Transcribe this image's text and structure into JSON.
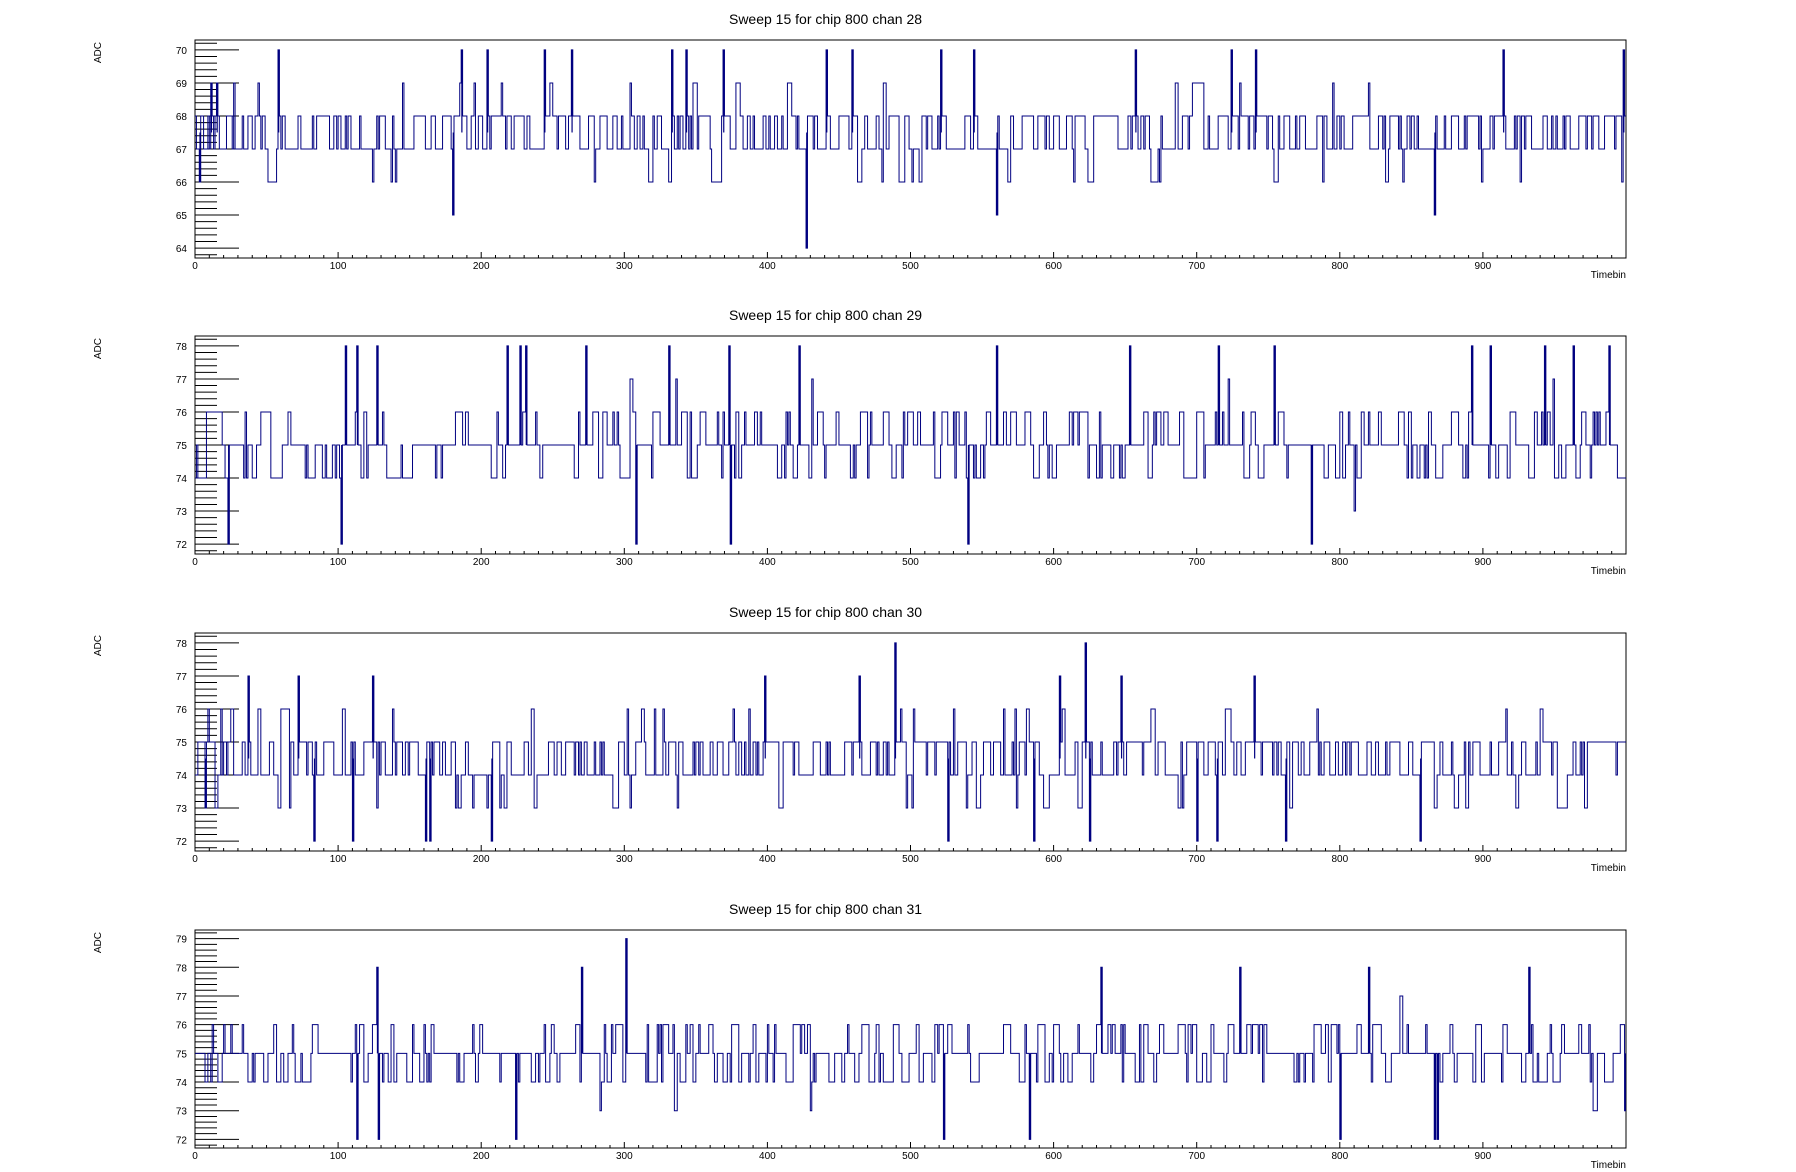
{
  "colors": {
    "trace": "#000080",
    "frame": "#000000",
    "background": "#ffffff"
  },
  "chart_data": [
    {
      "type": "line",
      "title": "Sweep 15 for chip 800 chan 28",
      "xlabel": "Timebin",
      "ylabel": "ADC",
      "xlim": [
        0,
        1000
      ],
      "ylim": [
        63.7,
        70.3
      ],
      "xticks": [
        0,
        100,
        200,
        300,
        400,
        500,
        600,
        700,
        800,
        900
      ],
      "yticks": [
        64,
        65,
        66,
        67,
        68,
        69,
        70
      ],
      "baseline": 67.5,
      "noise_levels": [
        66,
        67,
        68,
        69
      ],
      "spikes": [
        {
          "x": 3,
          "y": 66
        },
        {
          "x": 11,
          "y": 69
        },
        {
          "x": 15,
          "y": 69
        },
        {
          "x": 58,
          "y": 70
        },
        {
          "x": 180,
          "y": 65
        },
        {
          "x": 186,
          "y": 70
        },
        {
          "x": 204,
          "y": 70
        },
        {
          "x": 244,
          "y": 70
        },
        {
          "x": 263,
          "y": 70
        },
        {
          "x": 333,
          "y": 70
        },
        {
          "x": 343,
          "y": 70
        },
        {
          "x": 369,
          "y": 70
        },
        {
          "x": 427,
          "y": 64
        },
        {
          "x": 441,
          "y": 70
        },
        {
          "x": 459,
          "y": 70
        },
        {
          "x": 521,
          "y": 70
        },
        {
          "x": 544,
          "y": 70
        },
        {
          "x": 560,
          "y": 65
        },
        {
          "x": 657,
          "y": 70
        },
        {
          "x": 724,
          "y": 70
        },
        {
          "x": 741,
          "y": 70
        },
        {
          "x": 866,
          "y": 65
        },
        {
          "x": 914,
          "y": 70
        },
        {
          "x": 998,
          "y": 70
        }
      ]
    },
    {
      "type": "line",
      "title": "Sweep 15 for chip 800 chan 29",
      "xlabel": "Timebin",
      "ylabel": "ADC",
      "xlim": [
        0,
        1000
      ],
      "ylim": [
        71.7,
        78.3
      ],
      "xticks": [
        0,
        100,
        200,
        300,
        400,
        500,
        600,
        700,
        800,
        900
      ],
      "yticks": [
        72,
        73,
        74,
        75,
        76,
        77,
        78
      ],
      "baseline": 75,
      "noise_levels": [
        73,
        74,
        75,
        76,
        77
      ],
      "spikes": [
        {
          "x": 23,
          "y": 72
        },
        {
          "x": 102,
          "y": 72
        },
        {
          "x": 105,
          "y": 78
        },
        {
          "x": 113,
          "y": 78
        },
        {
          "x": 127,
          "y": 78
        },
        {
          "x": 218,
          "y": 78
        },
        {
          "x": 227,
          "y": 78
        },
        {
          "x": 231,
          "y": 78
        },
        {
          "x": 273,
          "y": 78
        },
        {
          "x": 308,
          "y": 72
        },
        {
          "x": 331,
          "y": 78
        },
        {
          "x": 374,
          "y": 72
        },
        {
          "x": 373,
          "y": 78
        },
        {
          "x": 422,
          "y": 78
        },
        {
          "x": 540,
          "y": 72
        },
        {
          "x": 560,
          "y": 78
        },
        {
          "x": 653,
          "y": 78
        },
        {
          "x": 715,
          "y": 78
        },
        {
          "x": 754,
          "y": 78
        },
        {
          "x": 780,
          "y": 72
        },
        {
          "x": 892,
          "y": 78
        },
        {
          "x": 905,
          "y": 78
        },
        {
          "x": 943,
          "y": 78
        },
        {
          "x": 963,
          "y": 78
        },
        {
          "x": 988,
          "y": 78
        }
      ]
    },
    {
      "type": "line",
      "title": "Sweep 15 for chip 800 chan 30",
      "xlabel": "Timebin",
      "ylabel": "ADC",
      "xlim": [
        0,
        1000
      ],
      "ylim": [
        71.7,
        78.3
      ],
      "xticks": [
        0,
        100,
        200,
        300,
        400,
        500,
        600,
        700,
        800,
        900
      ],
      "yticks": [
        72,
        73,
        74,
        75,
        76,
        77,
        78
      ],
      "baseline": 74.5,
      "noise_levels": [
        73,
        74,
        75,
        76
      ],
      "spikes": [
        {
          "x": 7,
          "y": 73
        },
        {
          "x": 37,
          "y": 77
        },
        {
          "x": 72,
          "y": 77
        },
        {
          "x": 83,
          "y": 72
        },
        {
          "x": 110,
          "y": 72
        },
        {
          "x": 124,
          "y": 77
        },
        {
          "x": 161,
          "y": 72
        },
        {
          "x": 164,
          "y": 72
        },
        {
          "x": 207,
          "y": 72
        },
        {
          "x": 398,
          "y": 77
        },
        {
          "x": 464,
          "y": 77
        },
        {
          "x": 489,
          "y": 78
        },
        {
          "x": 526,
          "y": 72
        },
        {
          "x": 586,
          "y": 72
        },
        {
          "x": 604,
          "y": 77
        },
        {
          "x": 622,
          "y": 78
        },
        {
          "x": 625,
          "y": 72
        },
        {
          "x": 647,
          "y": 77
        },
        {
          "x": 700,
          "y": 72
        },
        {
          "x": 714,
          "y": 72
        },
        {
          "x": 740,
          "y": 77
        },
        {
          "x": 762,
          "y": 72
        },
        {
          "x": 856,
          "y": 72
        }
      ]
    },
    {
      "type": "line",
      "title": "Sweep 15 for chip 800 chan 31",
      "xlabel": "Timebin",
      "ylabel": "ADC",
      "xlim": [
        0,
        1000
      ],
      "ylim": [
        71.7,
        79.3
      ],
      "xticks": [
        0,
        100,
        200,
        300,
        400,
        500,
        600,
        700,
        800,
        900
      ],
      "yticks": [
        72,
        73,
        74,
        75,
        76,
        77,
        78,
        79
      ],
      "baseline": 75,
      "noise_levels": [
        73,
        74,
        75,
        76,
        77
      ],
      "spikes": [
        {
          "x": 113,
          "y": 72
        },
        {
          "x": 127,
          "y": 78
        },
        {
          "x": 128,
          "y": 72
        },
        {
          "x": 224,
          "y": 72
        },
        {
          "x": 270,
          "y": 78
        },
        {
          "x": 301,
          "y": 79
        },
        {
          "x": 523,
          "y": 72
        },
        {
          "x": 583,
          "y": 72
        },
        {
          "x": 633,
          "y": 78
        },
        {
          "x": 730,
          "y": 78
        },
        {
          "x": 800,
          "y": 72
        },
        {
          "x": 820,
          "y": 78
        },
        {
          "x": 866,
          "y": 72
        },
        {
          "x": 868,
          "y": 72
        },
        {
          "x": 932,
          "y": 78
        },
        {
          "x": 999,
          "y": 73
        }
      ]
    }
  ]
}
